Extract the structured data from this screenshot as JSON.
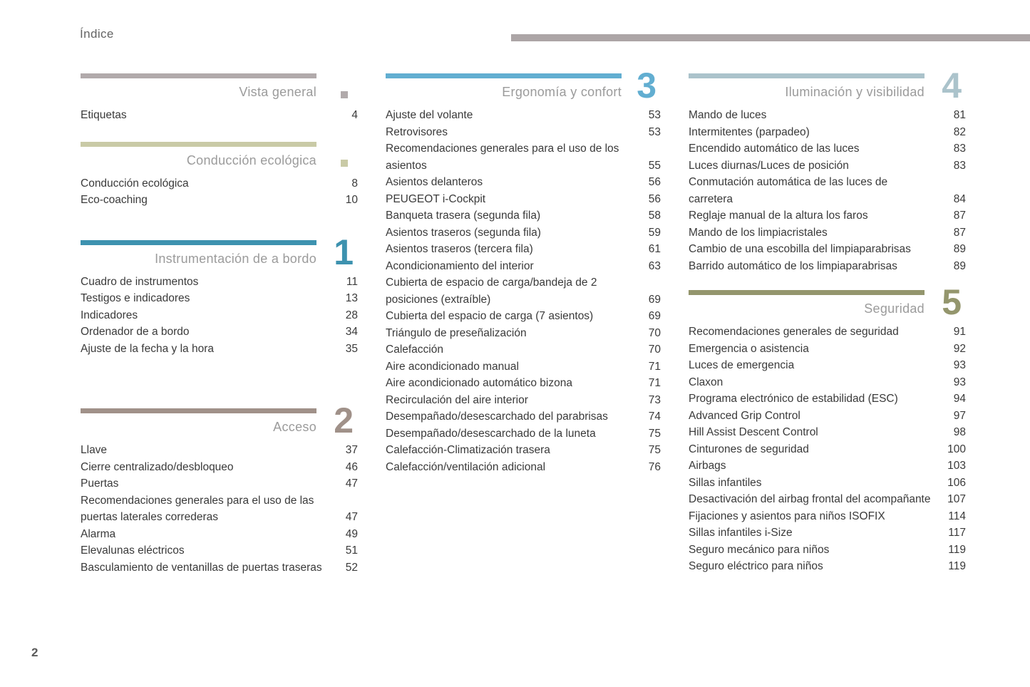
{
  "page": {
    "title": "Índice",
    "number": "2"
  },
  "top_rule": {
    "color": "#aca5a6"
  },
  "colors": {
    "body_text": "#3a3a3a",
    "section_title": "#9b9b9b",
    "vista_general": "#b1aaab",
    "conduccion_ecologica": "#c9caa6",
    "instrumentacion": "#3d92af",
    "acceso": "#a09189",
    "ergonomia": "#62aed1",
    "iluminacion": "#abc3cb",
    "seguridad": "#94966d"
  },
  "columns": [
    {
      "sections": [
        {
          "title": "Vista general",
          "marker": "square",
          "number": "",
          "color": "#b1aaab",
          "items": [
            {
              "label": "Etiquetas",
              "page": "4"
            }
          ]
        },
        {
          "title": "Conducción ecológica",
          "marker": "square",
          "number": "",
          "color": "#c9caa6",
          "items": [
            {
              "label": "Conducción ecológica",
              "page": "8"
            },
            {
              "label": "Eco-coaching",
              "page": "10"
            }
          ]
        },
        {
          "title": "Instrumentación de a bordo",
          "marker": "number",
          "number": "1",
          "color": "#3d92af",
          "items": [
            {
              "label": "Cuadro de instrumentos",
              "page": "11"
            },
            {
              "label": "Testigos e indicadores",
              "page": "13"
            },
            {
              "label": "Indicadores",
              "page": "28"
            },
            {
              "label": "Ordenador de a bordo",
              "page": "34"
            },
            {
              "label": "Ajuste de la fecha y la hora",
              "page": "35"
            }
          ]
        },
        {
          "title": "Acceso",
          "marker": "number",
          "number": "2",
          "color": "#a09189",
          "items": [
            {
              "label": "Llave",
              "page": "37"
            },
            {
              "label": "Cierre centralizado/desbloqueo",
              "page": "46"
            },
            {
              "label": "Puertas",
              "page": "47"
            },
            {
              "label": "Recomendaciones generales para el uso de las puertas laterales correderas",
              "page": "47"
            },
            {
              "label": "Alarma",
              "page": "49"
            },
            {
              "label": "Elevalunas eléctricos",
              "page": "51"
            },
            {
              "label": "Basculamiento de ventanillas de puertas traseras",
              "page": "52"
            }
          ]
        }
      ]
    },
    {
      "sections": [
        {
          "title": "Ergonomía y confort",
          "marker": "number",
          "number": "3",
          "color": "#62aed1",
          "items": [
            {
              "label": "Ajuste del volante",
              "page": "53"
            },
            {
              "label": "Retrovisores",
              "page": "53"
            },
            {
              "label": "Recomendaciones generales para el uso de los asientos",
              "page": "55"
            },
            {
              "label": "Asientos delanteros",
              "page": "56"
            },
            {
              "label": "PEUGEOT i-Cockpit",
              "page": "56"
            },
            {
              "label": "Banqueta trasera (segunda fila)",
              "page": "58"
            },
            {
              "label": "Asientos traseros (segunda fila)",
              "page": "59"
            },
            {
              "label": "Asientos traseros (tercera fila)",
              "page": "61"
            },
            {
              "label": "Acondicionamiento del interior",
              "page": "63"
            },
            {
              "label": "Cubierta de espacio de carga/bandeja de 2 posiciones (extraíble)",
              "page": "69"
            },
            {
              "label": "Cubierta del espacio de carga (7 asientos)",
              "page": "69"
            },
            {
              "label": "Triángulo de preseñalización",
              "page": "70"
            },
            {
              "label": "Calefacción",
              "page": "70"
            },
            {
              "label": "Aire acondicionado manual",
              "page": "71"
            },
            {
              "label": "Aire acondicionado automático bizona",
              "page": "71"
            },
            {
              "label": "Recirculación del aire interior",
              "page": "73"
            },
            {
              "label": "Desempañado/desescarchado del parabrisas",
              "page": "74"
            },
            {
              "label": "Desempañado/desescarchado de la luneta",
              "page": "75"
            },
            {
              "label": "Calefacción-Climatización trasera",
              "page": "75"
            },
            {
              "label": "Calefacción/ventilación adicional",
              "page": "76"
            }
          ]
        }
      ]
    },
    {
      "sections": [
        {
          "title": "Iluminación y visibilidad",
          "marker": "number",
          "number": "4",
          "color": "#abc3cb",
          "items": [
            {
              "label": "Mando de luces",
              "page": "81"
            },
            {
              "label": "Intermitentes (parpadeo)",
              "page": "82"
            },
            {
              "label": "Encendido automático de las luces",
              "page": "83"
            },
            {
              "label": "Luces diurnas/Luces de posición",
              "page": "83"
            },
            {
              "label": "Conmutación automática de las luces de carretera",
              "page": "84"
            },
            {
              "label": "Reglaje manual de la altura los faros",
              "page": "87"
            },
            {
              "label": "Mando de los limpiacristales",
              "page": "87"
            },
            {
              "label": "Cambio de una escobilla del limpiaparabrisas",
              "page": "89"
            },
            {
              "label": "Barrido automático de los limpiaparabrisas",
              "page": "89"
            }
          ]
        },
        {
          "title": "Seguridad",
          "marker": "number",
          "number": "5",
          "color": "#94966d",
          "items": [
            {
              "label": "Recomendaciones generales de seguridad",
              "page": "91"
            },
            {
              "label": "Emergencia o asistencia",
              "page": "92"
            },
            {
              "label": "Luces de emergencia",
              "page": "93"
            },
            {
              "label": "Claxon",
              "page": "93"
            },
            {
              "label": "Programa electrónico de estabilidad (ESC)",
              "page": "94"
            },
            {
              "label": "Advanced Grip Control",
              "page": "97"
            },
            {
              "label": "Hill Assist Descent Control",
              "page": "98"
            },
            {
              "label": "Cinturones de seguridad",
              "page": "100"
            },
            {
              "label": "Airbags",
              "page": "103"
            },
            {
              "label": "Sillas infantiles",
              "page": "106"
            },
            {
              "label": "Desactivación del airbag frontal del acompañante",
              "page": "107"
            },
            {
              "label": "Fijaciones y asientos para niños ISOFIX",
              "page": "114"
            },
            {
              "label": "Sillas infantiles i-Size",
              "page": "117"
            },
            {
              "label": "Seguro mecánico para niños",
              "page": "119"
            },
            {
              "label": "Seguro eléctrico para niños",
              "page": "119"
            }
          ]
        }
      ]
    }
  ]
}
